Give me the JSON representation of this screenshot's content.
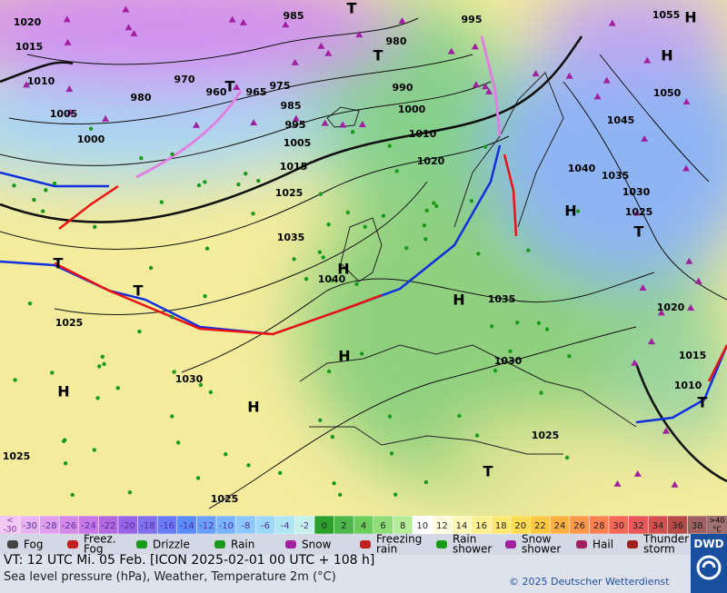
{
  "map": {
    "isobar_labels": [
      "1020",
      "1015",
      "1010",
      "1005",
      "1000",
      "985",
      "980",
      "970",
      "960",
      "965",
      "975",
      "980",
      "990",
      "995",
      "985",
      "1000",
      "1005",
      "1010",
      "1015",
      "1020",
      "1025",
      "1035",
      "1040",
      "1035",
      "1030",
      "1025",
      "1030",
      "1025",
      "1025",
      "1025",
      "995",
      "1055",
      "1050",
      "1045",
      "1040",
      "1035",
      "1030",
      "1025",
      "1020",
      "1015",
      "1010"
    ],
    "centers": [
      "T",
      "T",
      "T",
      "H",
      "H",
      "H",
      "H",
      "H",
      "H",
      "H",
      "H",
      "T",
      "T",
      "T",
      "T",
      "T"
    ]
  },
  "color_scale": {
    "low_label": [
      "<",
      "-30"
    ],
    "values": [
      -30,
      -28,
      -26,
      -24,
      -22,
      -20,
      -18,
      -16,
      -14,
      -12,
      -10,
      -8,
      -6,
      -4,
      -2,
      0,
      2,
      4,
      6,
      8,
      10,
      12,
      14,
      16,
      18,
      20,
      22,
      24,
      26,
      28,
      30,
      32,
      34,
      36,
      38
    ],
    "high_label": [
      ">40",
      "°C"
    ]
  },
  "legend": [
    [
      "Fog"
    ],
    [
      "Freez.",
      "Fog"
    ],
    [
      "Drizzle"
    ],
    [
      "Rain"
    ],
    [
      "Snow"
    ],
    [
      "Freezing",
      "rain"
    ],
    [
      "Rain",
      "shower"
    ],
    [
      "Snow",
      "shower"
    ],
    [
      "Hail"
    ],
    [
      "Thunder",
      "storm"
    ]
  ],
  "footer": {
    "valid_time": "VT: 12 UTC Mi.  05 Feb. [ICON 2025-02-01  00 UTC + 108 h]",
    "description": "Sea level pressure (hPa), Weather, Temperature 2m (°C)",
    "copyright": "© 2025 Deutscher Wetterdienst",
    "logo": "DWD"
  }
}
